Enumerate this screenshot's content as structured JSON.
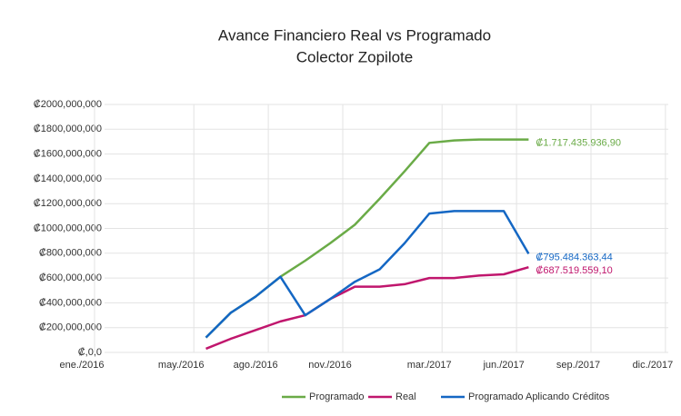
{
  "chart_data": {
    "type": "line",
    "title": "Avance Financiero Real vs Programado",
    "subtitle": "Colector Zopilote",
    "categories": [
      "ene./2016",
      null,
      null,
      null,
      "may./2016",
      null,
      null,
      "ago./2016",
      null,
      null,
      "nov./2016",
      null,
      null,
      null,
      "mar./2017",
      null,
      null,
      "jun./2017",
      null,
      null,
      "sep./2017",
      null,
      null,
      "dic./2017"
    ],
    "series": [
      {
        "name": "Programado",
        "color": "#6aab47",
        "values": [
          null,
          null,
          null,
          null,
          null,
          120000000,
          320000000,
          450000000,
          610000000,
          740000000,
          880000000,
          1030000000,
          1240000000,
          1460000000,
          1690000000,
          1710000000,
          1717000000,
          1717000000,
          1717435936.9,
          null,
          null,
          null,
          null,
          null
        ],
        "value_labels": [
          null,
          null,
          null,
          null,
          null,
          null,
          null,
          null,
          null,
          null,
          null,
          null,
          null,
          null,
          null,
          null,
          null,
          null,
          "₡1.717.435.936,90",
          null,
          null,
          null,
          null,
          null
        ]
      },
      {
        "name": "Real",
        "color": "#c0166d",
        "values": [
          null,
          null,
          null,
          null,
          null,
          30000000,
          110000000,
          180000000,
          250000000,
          300000000,
          430000000,
          530000000,
          530000000,
          550000000,
          600000000,
          600000000,
          620000000,
          630000000,
          687519559.1,
          null,
          null,
          null,
          null,
          null
        ],
        "value_labels": [
          null,
          null,
          null,
          null,
          null,
          null,
          null,
          null,
          null,
          null,
          null,
          null,
          null,
          null,
          null,
          null,
          null,
          null,
          "₡687.519.559,10",
          null,
          null,
          null,
          null,
          null
        ]
      },
      {
        "name": "Programado Aplicando Créditos",
        "color": "#1467c4",
        "values": [
          null,
          null,
          null,
          null,
          null,
          120000000,
          320000000,
          450000000,
          610000000,
          300000000,
          430000000,
          570000000,
          670000000,
          880000000,
          1120000000,
          1140000000,
          1140000000,
          1140000000,
          795484363.44,
          null,
          null,
          null,
          null,
          null
        ],
        "value_labels": [
          null,
          null,
          null,
          null,
          null,
          null,
          null,
          null,
          null,
          null,
          null,
          null,
          null,
          null,
          null,
          null,
          null,
          null,
          "₡795.484.363,44",
          null,
          null,
          null,
          null,
          null
        ]
      }
    ],
    "ylim": [
      0,
      2000000000
    ],
    "yticks": [
      {
        "value": 0,
        "label": "₡,0,0"
      },
      {
        "value": 200000000,
        "label": "₡200,000,000"
      },
      {
        "value": 400000000,
        "label": "₡400,000,000"
      },
      {
        "value": 600000000,
        "label": "₡600,000,000"
      },
      {
        "value": 800000000,
        "label": "₡800,000,000"
      },
      {
        "value": 1000000000,
        "label": "₡1000,000,000"
      },
      {
        "value": 1200000000,
        "label": "₡1200,000,000"
      },
      {
        "value": 1400000000,
        "label": "₡1400,000,000"
      },
      {
        "value": 1600000000,
        "label": "₡1600,000,000"
      },
      {
        "value": 1800000000,
        "label": "₡1800,000,000"
      },
      {
        "value": 2000000000,
        "label": "₡2000,000,000"
      }
    ],
    "grid": true,
    "legend": "bottom"
  }
}
